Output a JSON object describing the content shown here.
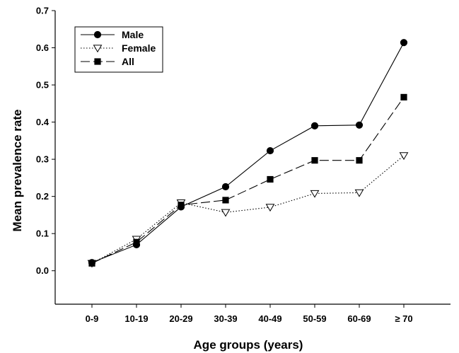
{
  "chart_data": {
    "type": "line",
    "title": "",
    "xlabel": "Age groups (years)",
    "ylabel": "Mean prevalence rate",
    "categories": [
      "0-9",
      "10-19",
      "20-29",
      "30-39",
      "40-49",
      "50-59",
      "60-69",
      "≥ 70"
    ],
    "y_ticks": [
      "0.0",
      "0.1",
      "0.2",
      "0.3",
      "0.4",
      "0.5",
      "0.6",
      "0.7"
    ],
    "ylim": [
      -0.09,
      0.7
    ],
    "grid": false,
    "legend_position": "top-left",
    "series": [
      {
        "name": "Male",
        "line_style": "solid",
        "marker": "filled-circle",
        "values": [
          0.022,
          0.07,
          0.172,
          0.226,
          0.323,
          0.39,
          0.392,
          0.614
        ]
      },
      {
        "name": "Female",
        "line_style": "dotted",
        "marker": "open-down-triangle",
        "values": [
          0.02,
          0.085,
          0.183,
          0.157,
          0.171,
          0.208,
          0.21,
          0.31
        ]
      },
      {
        "name": "All",
        "line_style": "dashed",
        "marker": "filled-square",
        "values": [
          0.02,
          0.077,
          0.177,
          0.19,
          0.246,
          0.297,
          0.297,
          0.467
        ]
      }
    ],
    "colors": {
      "line": "#000000",
      "background": "#ffffff"
    }
  }
}
